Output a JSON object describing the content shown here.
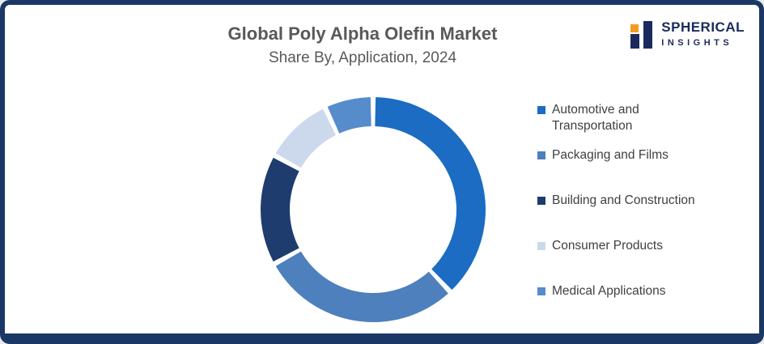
{
  "header": {
    "title": "Global Poly Alpha Olefin Market",
    "subtitle": "Share By, Application, 2024"
  },
  "logo": {
    "line1": "SPHERICAL",
    "line2": "INSIGHTS",
    "navy": "#1b2a5c",
    "accent_color": "#f59b20"
  },
  "frame": {
    "border_color": "#1b3765",
    "background": "#ffffff"
  },
  "chart_data": {
    "type": "pie",
    "donut": true,
    "title": "Global Poly Alpha Olefin Market",
    "subtitle": "Share By, Application, 2024",
    "legend_position": "right",
    "start_angle_deg": 0,
    "direction": "clockwise",
    "values_are_estimated_percent": true,
    "segments": [
      {
        "label": "Automotive and Transportation",
        "value": 38,
        "color": "#1b6cc2"
      },
      {
        "label": "Packaging and Films",
        "value": 29,
        "color": "#4d80bc"
      },
      {
        "label": "Building and Construction",
        "value": 16,
        "color": "#1e3c6e"
      },
      {
        "label": "Consumer Products",
        "value": 10,
        "color": "#ccd9ec"
      },
      {
        "label": "Medical Applications",
        "value": 7,
        "color": "#568ccb"
      }
    ]
  }
}
